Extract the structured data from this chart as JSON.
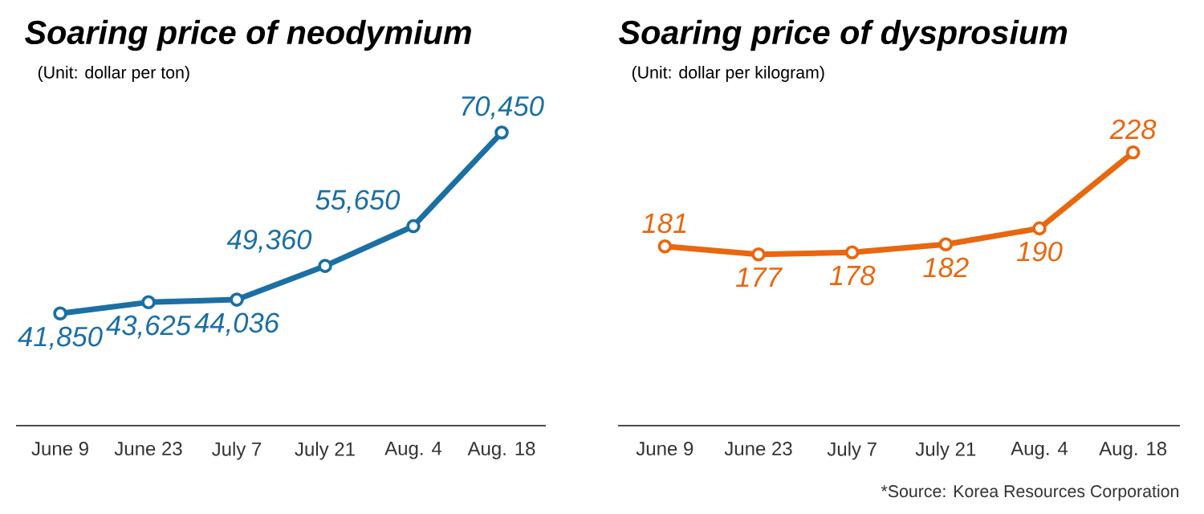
{
  "chart_data": [
    {
      "type": "line",
      "title": "Soaring price of neodymium",
      "subtitle": "(Unit: dollar per ton)",
      "categories": [
        "June 9",
        "June 23",
        "July 7",
        "July 21",
        "Aug. 4",
        "Aug. 18"
      ],
      "series": [
        {
          "color": "#1b6fa3",
          "values": [
            41850,
            43625,
            44036,
            49360,
            55650,
            70450
          ],
          "value_labels": [
            "41,850",
            "43,625",
            "44,036",
            "49,360",
            "55,650",
            "70,450"
          ]
        }
      ],
      "marker": "circle",
      "grid": false,
      "tick_labels": "x"
    },
    {
      "type": "line",
      "title": "Soaring price of dysprosium",
      "subtitle": "(Unit: dollar per kilogram)",
      "categories": [
        "June 9",
        "June 23",
        "July 7",
        "July 21",
        "Aug. 4",
        "Aug. 18"
      ],
      "series": [
        {
          "color": "#e8670f",
          "values": [
            181,
            177,
            178,
            182,
            190,
            228
          ]
        }
      ],
      "data_labels": true,
      "marker": "circle",
      "grid": false,
      "tick_labels": "x",
      "annotations": [
        "*Source: Korea Resources Corporation"
      ]
    }
  ]
}
